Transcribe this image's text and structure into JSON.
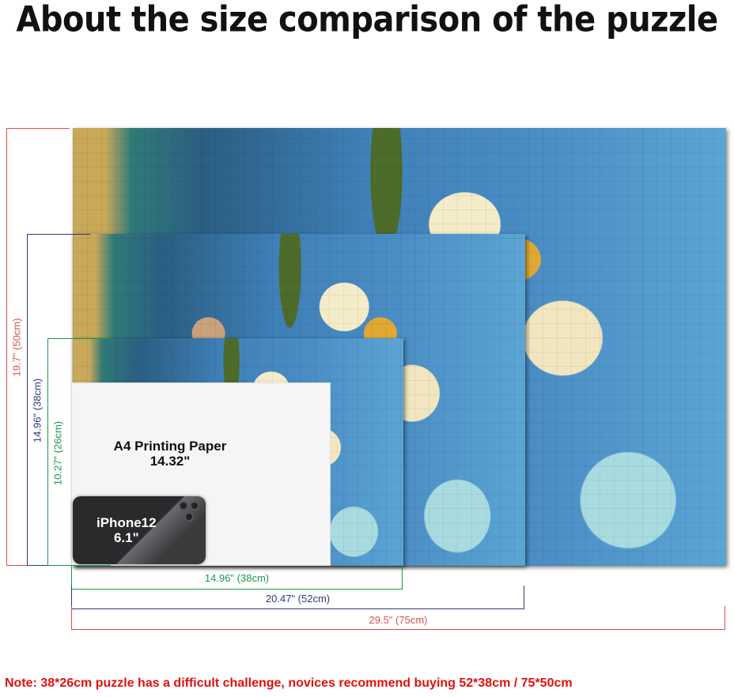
{
  "title": "About the size comparison of the puzzle",
  "heights": {
    "large": "19.7\" (50cm)",
    "medium": "14.96\" (38cm)",
    "small": "10.27\" (26cm)"
  },
  "widths": {
    "small": "14.96\" (38cm)",
    "medium": "20.47\" (52cm)",
    "large": "29.5\" (75cm)"
  },
  "a4": {
    "label": "A4 Printing Paper",
    "size": "14.32\""
  },
  "phone": {
    "label": "iPhone12",
    "size": "6.1\""
  },
  "note": "Note:  38*26cm puzzle has a difficult challenge, novices recommend buying 52*38cm / 75*50cm",
  "colors": {
    "large": "#d9534f",
    "medium": "#2e3a7a",
    "small": "#1a9a4a",
    "note": "#e01010"
  }
}
